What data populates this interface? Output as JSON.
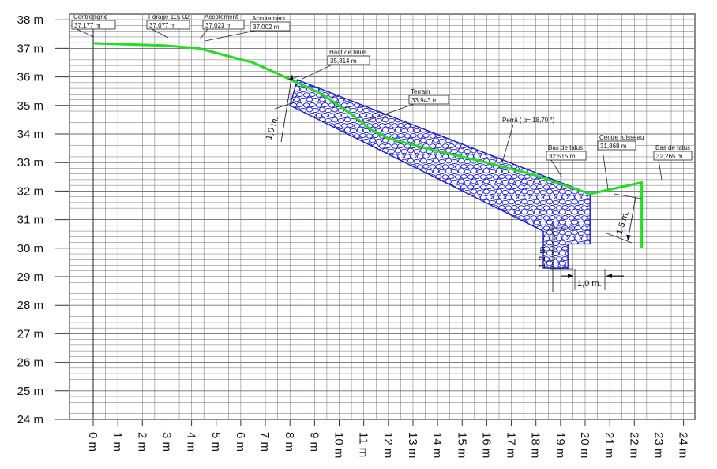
{
  "chart_data": {
    "type": "line",
    "title": "",
    "xlabel": "",
    "ylabel": "",
    "xlim": [
      0,
      24
    ],
    "ylim": [
      24,
      38
    ],
    "x_tick_labels": [
      "0 m",
      "1 m",
      "2 m",
      "3 m",
      "4 m",
      "5 m",
      "6 m",
      "7 m",
      "8 m",
      "9 m",
      "10 m",
      "11 m",
      "12 m",
      "13 m",
      "14 m",
      "15 m",
      "16 m",
      "17 m",
      "18 m",
      "19 m",
      "20 m",
      "21 m",
      "22 m",
      "23 m",
      "24 m"
    ],
    "y_tick_labels": [
      "24 m",
      "25 m",
      "26 m",
      "27 m",
      "28 m",
      "29 m",
      "30 m",
      "31 m",
      "32 m",
      "33 m",
      "34 m",
      "35 m",
      "36 m",
      "37 m",
      "38 m"
    ],
    "grid": true,
    "colors": {
      "terrain": "#22dd22",
      "riprap": "#1a1ad6",
      "grid": "#6b6b6b",
      "frame": "#8c8c8c"
    },
    "series": [
      {
        "x": [
          0,
          2.9,
          4.3,
          6.5,
          8.3,
          9.3,
          10.5,
          11.3,
          12.0,
          14.0,
          16.0,
          18.0,
          20.2,
          21.5,
          22.3,
          22.3
        ],
        "y": [
          37.18,
          37.1,
          37.0,
          36.5,
          35.8,
          35.4,
          34.7,
          34.15,
          33.85,
          33.4,
          33.0,
          32.55,
          31.9,
          32.15,
          32.3,
          30.0
        ]
      }
    ],
    "riprap": {
      "outline": [
        [
          8.3,
          35.9
        ],
        [
          20.2,
          31.9
        ],
        [
          20.2,
          30.15
        ],
        [
          19.3,
          30.15
        ],
        [
          19.3,
          29.3
        ],
        [
          18.3,
          29.3
        ],
        [
          18.3,
          30.6
        ],
        [
          8.0,
          35.0
        ]
      ]
    },
    "annotations": [
      {
        "title": "Centre ligne",
        "value": "37,177 m",
        "x": 0,
        "y": 37.18
      },
      {
        "title": "Forage 115-02",
        "value": "37,077 m",
        "x": 3.0,
        "y": 37.07
      },
      {
        "title": "Accotement",
        "value": "37,023 m",
        "x": 4.3,
        "y": 37.02
      },
      {
        "title": "Accotement",
        "value": "37,002 m",
        "x": 4.5,
        "y": 37.0
      },
      {
        "title": "Haut de talus",
        "value": "35,814 m",
        "x": 8.3,
        "y": 35.81
      },
      {
        "title": "Terrain",
        "value": "33,943 m",
        "x": 11.7,
        "y": 34.1
      },
      {
        "title": "Perrâ ( α= 18,70 °)",
        "value": "",
        "x": 16.0,
        "y": 32.9
      },
      {
        "title": "Bas de talus",
        "value": "32,515 m",
        "x": 18.3,
        "y": 32.3
      },
      {
        "title": "Centre ruisseau",
        "value": "31,868 m",
        "x": 20.2,
        "y": 31.87
      },
      {
        "title": "Bas de talus",
        "value": "32,265 m",
        "x": 22.3,
        "y": 32.27
      }
    ],
    "dimensions": [
      {
        "label": "1,0 m."
      },
      {
        "label": "1,5 m."
      },
      {
        "label": "1,2 m."
      },
      {
        "label": "1,0 m."
      }
    ]
  }
}
